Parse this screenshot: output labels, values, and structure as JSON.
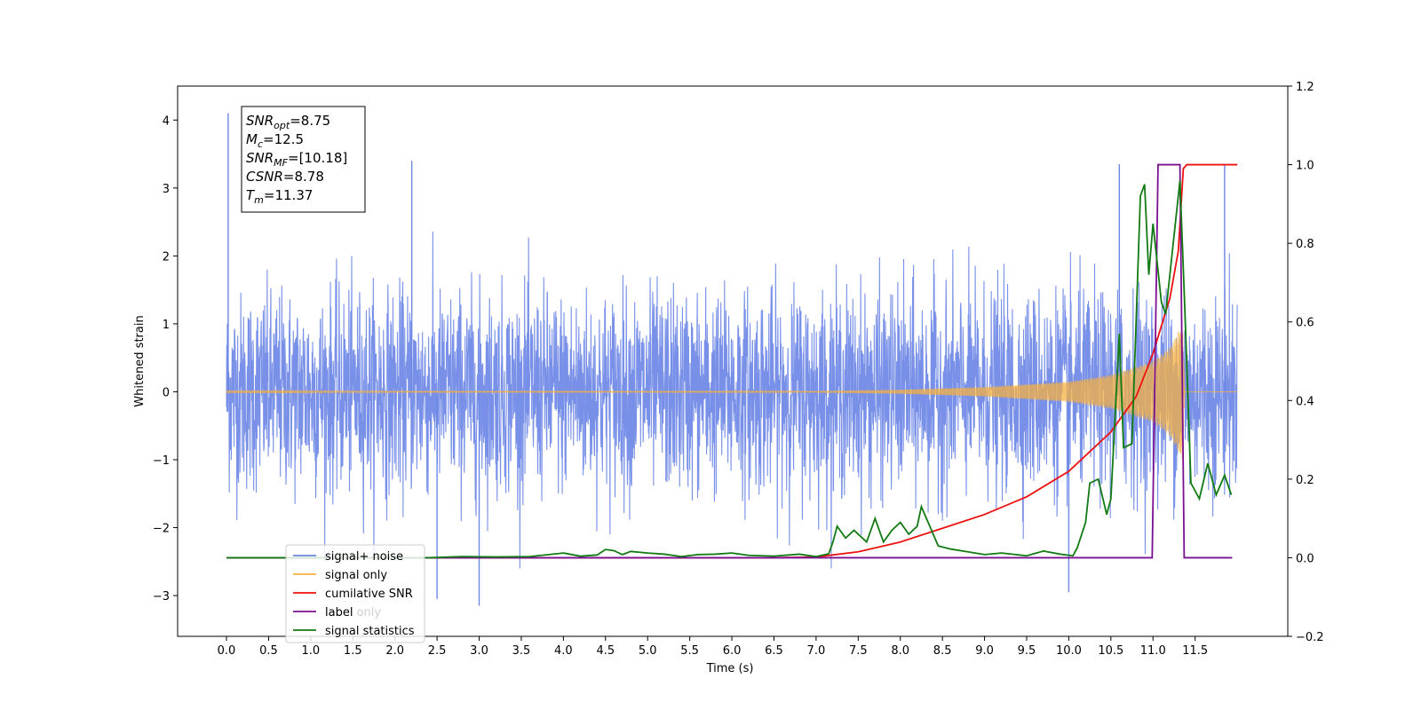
{
  "chart_data": {
    "type": "line",
    "title": "",
    "xlabel": "Time (s)",
    "ylabel": "Whitened strain",
    "y2label": "",
    "xlim": [
      -0.58,
      12.6
    ],
    "ylim": [
      -3.6,
      4.5
    ],
    "y2lim": [
      -0.2,
      1.2
    ],
    "x_ticks": [
      0.0,
      0.5,
      1.0,
      1.5,
      2.0,
      2.5,
      3.0,
      3.5,
      4.0,
      4.5,
      5.0,
      5.5,
      6.0,
      6.5,
      7.0,
      7.5,
      8.0,
      8.5,
      9.0,
      9.5,
      10.0,
      10.5,
      11.0,
      11.5
    ],
    "x_tick_labels": [
      "0.0",
      "0.5",
      "1.0",
      "1.5",
      "2.0",
      "2.5",
      "3.0",
      "3.5",
      "4.0",
      "4.5",
      "5.0",
      "5.5",
      "6.0",
      "6.5",
      "7.0",
      "7.5",
      "8.0",
      "8.5",
      "9.0",
      "9.5",
      "10.0",
      "10.5",
      "11.0",
      "11.5"
    ],
    "y_ticks": [
      -3,
      -2,
      -1,
      0,
      1,
      2,
      3,
      4
    ],
    "y_tick_labels": [
      "−3",
      "−2",
      "−1",
      "0",
      "1",
      "2",
      "3",
      "4"
    ],
    "y2_ticks": [
      -0.2,
      0.0,
      0.2,
      0.4,
      0.6,
      0.8,
      1.0,
      1.2
    ],
    "y2_tick_labels": [
      "−0.2",
      "0.0",
      "0.2",
      "0.4",
      "0.6",
      "0.8",
      "1.0",
      "1.2"
    ],
    "grid": false,
    "legend_position": "lower-left",
    "noise_series": {
      "name": "signal+ noise",
      "color": "#6c87e5",
      "x_range": [
        0.0,
        12.0
      ],
      "typical_amplitude": 1.0,
      "peaks": [
        [
          0.02,
          4.1
        ],
        [
          2.2,
          3.4
        ],
        [
          3.0,
          -3.15
        ],
        [
          2.5,
          -3.05
        ],
        [
          11.85,
          3.35
        ],
        [
          10.6,
          3.35
        ],
        [
          10.0,
          -2.95
        ]
      ]
    },
    "signal_series": {
      "name": "signal only",
      "color": "#f5b041",
      "x_range": [
        0.0,
        12.0
      ],
      "envelope": [
        [
          0.0,
          0.005
        ],
        [
          7.0,
          0.01
        ],
        [
          8.0,
          0.03
        ],
        [
          9.0,
          0.07
        ],
        [
          10.0,
          0.15
        ],
        [
          10.5,
          0.25
        ],
        [
          11.0,
          0.45
        ],
        [
          11.2,
          0.65
        ],
        [
          11.35,
          1.0
        ],
        [
          11.38,
          0.0
        ],
        [
          12.0,
          0.0
        ]
      ]
    },
    "series": [
      {
        "name": "cumilative SNR",
        "axis": "right",
        "color": "#ee1111",
        "points": [
          [
            0.0,
            0.0
          ],
          [
            6.5,
            0.0
          ],
          [
            7.0,
            0.002
          ],
          [
            7.5,
            0.015
          ],
          [
            8.0,
            0.04
          ],
          [
            8.5,
            0.075
          ],
          [
            9.0,
            0.11
          ],
          [
            9.5,
            0.155
          ],
          [
            10.0,
            0.22
          ],
          [
            10.5,
            0.32
          ],
          [
            10.8,
            0.41
          ],
          [
            11.0,
            0.52
          ],
          [
            11.2,
            0.66
          ],
          [
            11.3,
            0.78
          ],
          [
            11.36,
            0.99
          ],
          [
            11.4,
            1.0
          ],
          [
            12.0,
            1.0
          ]
        ]
      },
      {
        "name": "label",
        "axis": "right",
        "color": "#7b0f91",
        "points": [
          [
            0.0,
            0.0
          ],
          [
            10.99,
            0.0
          ],
          [
            11.06,
            1.0
          ],
          [
            11.32,
            1.0
          ],
          [
            11.37,
            0.0
          ],
          [
            11.94,
            0.0
          ]
        ]
      },
      {
        "name": "signal statistics",
        "axis": "right",
        "color": "#127a12",
        "points": [
          [
            0.0,
            0.0
          ],
          [
            2.4,
            0.0
          ],
          [
            2.8,
            0.003
          ],
          [
            3.2,
            0.002
          ],
          [
            3.6,
            0.003
          ],
          [
            4.0,
            0.012
          ],
          [
            4.2,
            0.004
          ],
          [
            4.4,
            0.007
          ],
          [
            4.5,
            0.021
          ],
          [
            4.6,
            0.018
          ],
          [
            4.7,
            0.008
          ],
          [
            4.8,
            0.016
          ],
          [
            5.0,
            0.012
          ],
          [
            5.2,
            0.009
          ],
          [
            5.4,
            0.003
          ],
          [
            5.6,
            0.008
          ],
          [
            5.8,
            0.009
          ],
          [
            6.0,
            0.012
          ],
          [
            6.2,
            0.006
          ],
          [
            6.5,
            0.004
          ],
          [
            6.8,
            0.009
          ],
          [
            7.0,
            0.003
          ],
          [
            7.15,
            0.01
          ],
          [
            7.2,
            0.04
          ],
          [
            7.25,
            0.08
          ],
          [
            7.35,
            0.05
          ],
          [
            7.45,
            0.07
          ],
          [
            7.6,
            0.04
          ],
          [
            7.7,
            0.1
          ],
          [
            7.8,
            0.04
          ],
          [
            7.9,
            0.07
          ],
          [
            8.0,
            0.09
          ],
          [
            8.1,
            0.06
          ],
          [
            8.2,
            0.08
          ],
          [
            8.25,
            0.13
          ],
          [
            8.35,
            0.08
          ],
          [
            8.45,
            0.03
          ],
          [
            8.6,
            0.022
          ],
          [
            8.8,
            0.015
          ],
          [
            9.0,
            0.008
          ],
          [
            9.2,
            0.012
          ],
          [
            9.5,
            0.005
          ],
          [
            9.7,
            0.017
          ],
          [
            9.9,
            0.009
          ],
          [
            10.05,
            0.005
          ],
          [
            10.1,
            0.025
          ],
          [
            10.2,
            0.09
          ],
          [
            10.25,
            0.19
          ],
          [
            10.35,
            0.2
          ],
          [
            10.45,
            0.11
          ],
          [
            10.5,
            0.15
          ],
          [
            10.6,
            0.57
          ],
          [
            10.65,
            0.28
          ],
          [
            10.75,
            0.29
          ],
          [
            10.85,
            0.92
          ],
          [
            10.9,
            0.95
          ],
          [
            10.95,
            0.72
          ],
          [
            11.0,
            0.85
          ],
          [
            11.1,
            0.65
          ],
          [
            11.15,
            0.62
          ],
          [
            11.25,
            0.82
          ],
          [
            11.32,
            0.96
          ],
          [
            11.38,
            0.62
          ],
          [
            11.45,
            0.19
          ],
          [
            11.55,
            0.15
          ],
          [
            11.65,
            0.24
          ],
          [
            11.75,
            0.16
          ],
          [
            11.85,
            0.21
          ],
          [
            11.93,
            0.16
          ]
        ]
      }
    ],
    "legend": [
      {
        "label": "signal+ noise",
        "color": "#6c87e5"
      },
      {
        "label": "signal only",
        "color": "#f5b041"
      },
      {
        "label": "cumilative SNR",
        "color": "#ee1111"
      },
      {
        "label": "label",
        "color": "#7b0f91"
      },
      {
        "label": "signal statistics",
        "color": "#127a12"
      }
    ],
    "overlapped_legend_text": "label only",
    "info_box": [
      {
        "base": "SNR",
        "sub": "opt",
        "value": "=8.75"
      },
      {
        "base": "M",
        "sub": "c",
        "value": "=12.5"
      },
      {
        "base": "SNR",
        "sub": "MF",
        "value": "=[10.18]"
      },
      {
        "base": "CSNR",
        "sub": "",
        "value": "=8.78"
      },
      {
        "base": "T",
        "sub": "m",
        "value": "=11.37"
      }
    ]
  }
}
